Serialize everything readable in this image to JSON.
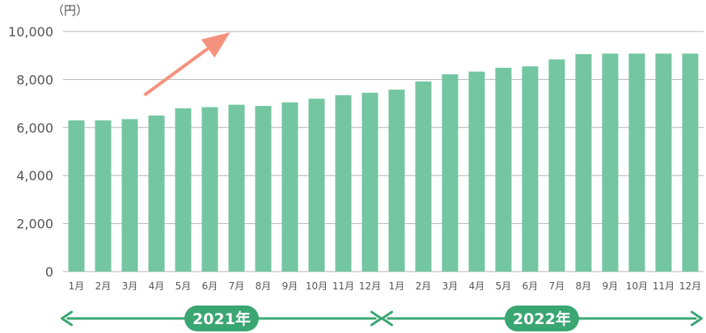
{
  "chart_data": {
    "type": "bar",
    "unit_label": "（円）",
    "categories": [
      "1月",
      "2月",
      "3月",
      "4月",
      "5月",
      "6月",
      "7月",
      "8月",
      "9月",
      "10月",
      "11月",
      "12月",
      "1月",
      "2月",
      "3月",
      "4月",
      "5月",
      "6月",
      "7月",
      "8月",
      "9月",
      "10月",
      "11月",
      "12月"
    ],
    "values": [
      6300,
      6300,
      6350,
      6500,
      6800,
      6850,
      6950,
      6900,
      7050,
      7200,
      7350,
      7450,
      7580,
      7920,
      8220,
      8330,
      8490,
      8550,
      8840,
      9060,
      9080,
      9080,
      9080,
      9080
    ],
    "y_ticks": [
      "0",
      "2,000",
      "4,000",
      "6,000",
      "8,000",
      "10,000"
    ],
    "ylim": [
      0,
      10000
    ],
    "grid": true,
    "trend_arrow": {
      "from": {
        "x": "3月",
        "y": 7350
      },
      "to": {
        "x": "7月",
        "y": 10000
      },
      "color": "#f4927e"
    },
    "year_groups": [
      {
        "label": "2021年",
        "first": 0,
        "last": 11
      },
      {
        "label": "2022年",
        "first": 12,
        "last": 23
      }
    ],
    "colors": {
      "bar": "#73c6a1",
      "grid": "#b4b4b4",
      "arrow": "#f4927e",
      "year": "#3aa672"
    }
  }
}
